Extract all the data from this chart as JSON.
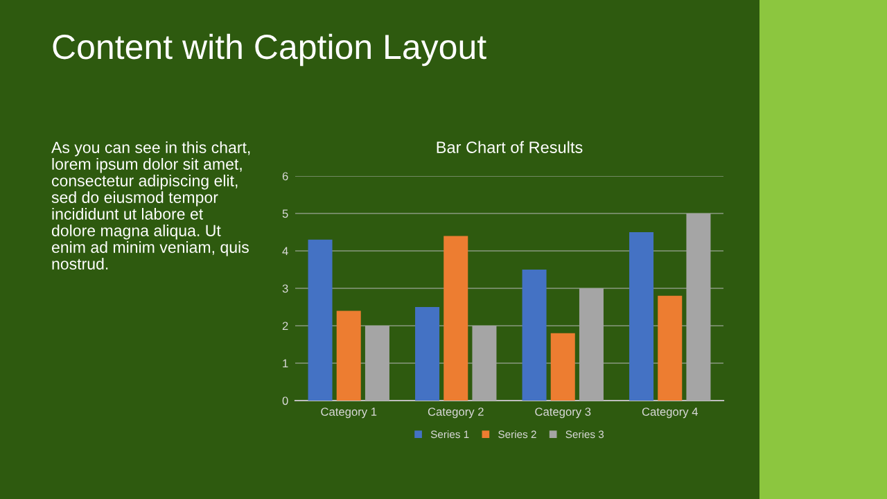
{
  "chart_data": {
    "type": "bar",
    "title": "Content with Caption Layout",
    "subtitle": "Bar Chart of Results",
    "annotations": [
      "As you can see in this chart,\nlorem ipsum dolor sit amet,\nconsectetur adipiscing elit,\nsed do eiusmod tempor\nincididunt ut labore et\ndolore magna aliqua. Ut\nenim ad minim veniam, quis\nnostrud."
    ],
    "categories": [
      "Category 1",
      "Category 2",
      "Category 3",
      "Category 4"
    ],
    "series": [
      {
        "name": "Series 1",
        "color": "#4472c4",
        "values": [
          4.3,
          2.5,
          3.5,
          4.5
        ]
      },
      {
        "name": "Series 2",
        "color": "#ed7d31",
        "values": [
          2.4,
          4.4,
          1.8,
          2.8
        ]
      },
      {
        "name": "Series 3",
        "color": "#a5a5a5",
        "values": [
          2,
          2,
          3,
          5
        ]
      }
    ],
    "ylim": [
      0,
      6
    ],
    "yticks": [
      0,
      1,
      2,
      3,
      4,
      5,
      6
    ],
    "grid": "y",
    "legend": "bottom"
  }
}
